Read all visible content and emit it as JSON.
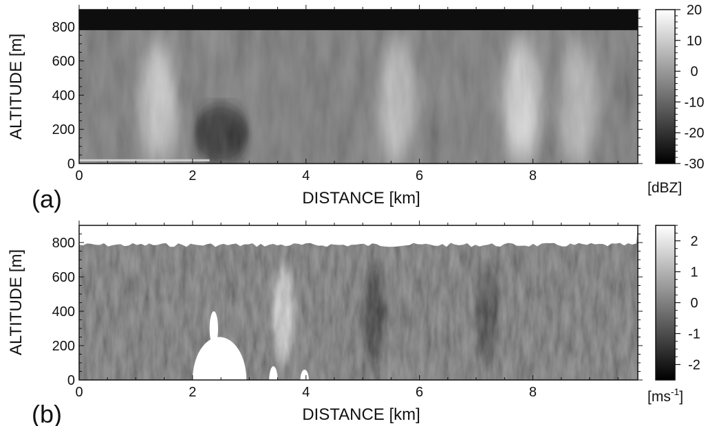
{
  "chart_data": [
    {
      "type": "heatmap",
      "panel": "(a)",
      "xlabel": "DISTANCE [km]",
      "ylabel": "ALTITUDE [m]",
      "xlim": [
        0,
        9.85
      ],
      "ylim": [
        0,
        900
      ],
      "x_ticks": [
        "0",
        "2",
        "4",
        "6",
        "8"
      ],
      "y_ticks": [
        "0",
        "200",
        "400",
        "600",
        "800"
      ],
      "colorbar": {
        "ticks": [
          "20",
          "10",
          "0",
          "-10",
          "-20",
          "-30"
        ],
        "range": [
          -30,
          20
        ],
        "unit": "[dBZ]"
      },
      "field": "reflectivity",
      "palette": "grayscale",
      "echo_top_m": 780,
      "features": [
        {
          "x_km": 1.4,
          "value_dBZ": 8
        },
        {
          "x_km": 2.5,
          "value_dBZ": -24
        },
        {
          "x_km": 5.6,
          "value_dBZ": 6
        },
        {
          "x_km": 7.8,
          "value_dBZ": 12
        },
        {
          "x_km": 8.8,
          "value_dBZ": 5
        }
      ]
    },
    {
      "type": "heatmap",
      "panel": "(b)",
      "xlabel": "DISTANCE [km]",
      "ylabel": "ALTITUDE [m]",
      "xlim": [
        0,
        9.85
      ],
      "ylim": [
        0,
        900
      ],
      "x_ticks": [
        "0",
        "2",
        "4",
        "6",
        "8"
      ],
      "y_ticks": [
        "0",
        "200",
        "400",
        "600",
        "800"
      ],
      "colorbar": {
        "ticks": [
          "2",
          "1",
          "0",
          "-1",
          "-2"
        ],
        "range": [
          -2.5,
          2.5
        ],
        "unit_base": "[ms",
        "unit_exp": "-1",
        "unit_close": "]"
      },
      "field": "vertical_velocity",
      "palette": "grayscale",
      "echo_top_m": 790,
      "features": [
        {
          "x_km": 3.6,
          "value_ms": 1.5
        },
        {
          "x_km": 5.2,
          "value_ms": -2.2
        },
        {
          "x_km": 7.2,
          "value_ms": -2.0
        }
      ],
      "no_data_regions": [
        {
          "x_km": [
            2.0,
            2.95
          ],
          "alt_m": [
            0,
            250
          ]
        },
        {
          "x_km": [
            2.3,
            2.45
          ],
          "alt_m": [
            300,
            400
          ]
        },
        {
          "x_km": [
            3.35,
            3.5
          ],
          "alt_m": [
            0,
            80
          ]
        },
        {
          "x_km": [
            3.9,
            4.05
          ],
          "alt_m": [
            0,
            60
          ]
        }
      ]
    }
  ]
}
